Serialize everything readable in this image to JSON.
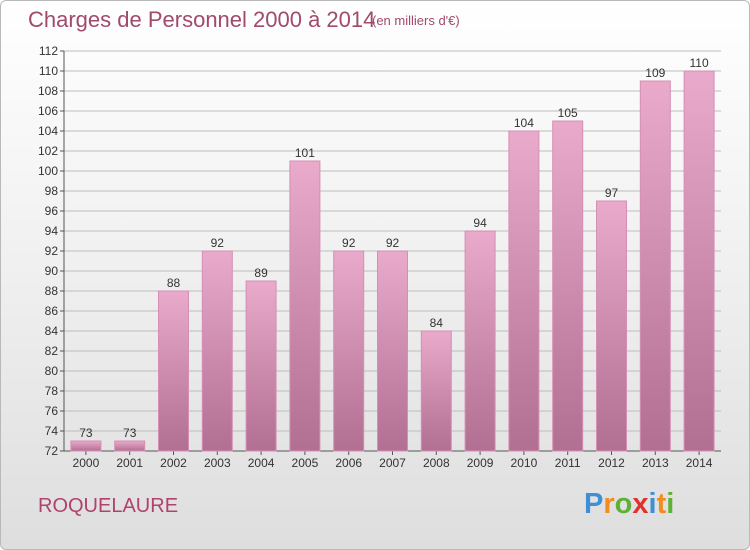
{
  "header": {
    "title": "Charges de Personnel 2000 à 2014",
    "subtitle": "(en milliers d'€)"
  },
  "footer": {
    "commune": "ROQUELAURE",
    "logo_letters": [
      {
        "ch": "P",
        "color": "#3d8fd6"
      },
      {
        "ch": "r",
        "color": "#f28c1e"
      },
      {
        "ch": "o",
        "color": "#5fb135"
      },
      {
        "ch": "x",
        "color": "#e2312d"
      },
      {
        "ch": "i",
        "color": "#3d8fd6"
      },
      {
        "ch": "t",
        "color": "#f28c1e"
      },
      {
        "ch": "i",
        "color": "#5fb135"
      }
    ]
  },
  "colors": {
    "bar_top": "#e9aacb",
    "bar_bottom": "#b16f92",
    "bar_edge": "#d68fb4",
    "grid": "#bdbdbd"
  },
  "chart_data": {
    "type": "bar",
    "categories": [
      "2000",
      "2001",
      "2002",
      "2003",
      "2004",
      "2005",
      "2006",
      "2007",
      "2008",
      "2009",
      "2010",
      "2011",
      "2012",
      "2013",
      "2014"
    ],
    "values": [
      73,
      73,
      88,
      92,
      89,
      101,
      92,
      92,
      84,
      94,
      104,
      105,
      97,
      109,
      110
    ],
    "ylim": [
      72,
      112
    ],
    "yticks": [
      72,
      74,
      76,
      78,
      80,
      82,
      84,
      86,
      88,
      90,
      92,
      94,
      96,
      98,
      100,
      102,
      104,
      106,
      108,
      110,
      112
    ],
    "grid": true,
    "legend": "none"
  }
}
